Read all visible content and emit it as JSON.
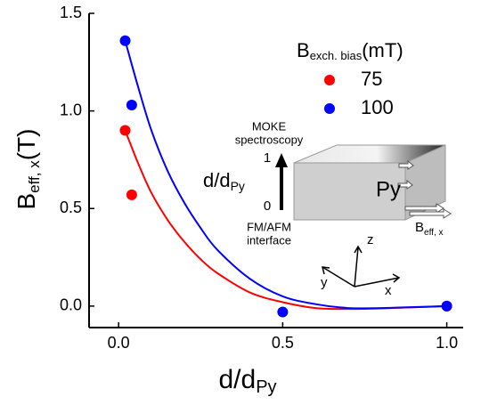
{
  "chart_data": {
    "type": "scatter",
    "x_label": {
      "main": "d/d",
      "sub": "Py"
    },
    "y_label": {
      "main": "B",
      "sub": "eff, x",
      "unit": "(T)"
    },
    "legend_title": {
      "main": "B",
      "sub": "exch. bias",
      "unit": "(mT)"
    },
    "xlim": [
      -0.09,
      1.05
    ],
    "ylim": [
      -0.11,
      1.5
    ],
    "xticks": [
      {
        "value": 0,
        "label": "0.0"
      },
      {
        "value": 0.5,
        "label": "0.5"
      },
      {
        "value": 1,
        "label": "1.0"
      }
    ],
    "yticks": [
      {
        "value": 0,
        "label": "0.0"
      },
      {
        "value": 0.5,
        "label": "0.5"
      },
      {
        "value": 1,
        "label": "1.0"
      },
      {
        "value": 1.5,
        "label": "1.5"
      }
    ],
    "series": [
      {
        "name": "75",
        "color": "#ff0000",
        "x": [
          0.02,
          0.04,
          1.0
        ],
        "values": [
          0.9,
          0.57,
          0.0
        ],
        "fit_x": [
          0.02,
          0.06,
          0.1,
          0.15,
          0.2,
          0.25,
          0.3,
          0.4,
          0.5,
          0.6,
          0.7,
          0.8,
          0.9,
          1.0
        ],
        "fit_values": [
          0.9,
          0.73,
          0.58,
          0.44,
          0.33,
          0.24,
          0.17,
          0.07,
          0.02,
          -0.01,
          -0.015,
          -0.012,
          -0.006,
          0.0
        ]
      },
      {
        "name": "100",
        "color": "#0000ff",
        "x": [
          0.02,
          0.04,
          0.5,
          1.0
        ],
        "values": [
          1.36,
          1.03,
          -0.03,
          0.0
        ],
        "fit_x": [
          0.02,
          0.06,
          0.1,
          0.15,
          0.2,
          0.25,
          0.3,
          0.4,
          0.5,
          0.6,
          0.7,
          0.8,
          0.9,
          1.0
        ],
        "fit_values": [
          1.36,
          1.12,
          0.9,
          0.69,
          0.53,
          0.4,
          0.29,
          0.14,
          0.05,
          0.01,
          -0.01,
          -0.01,
          -0.005,
          0.0
        ]
      }
    ]
  },
  "inset": {
    "moke": "MOKE",
    "spectroscopy": "spectroscopy",
    "top": "1",
    "bottom": "0",
    "ratio": {
      "main": "d/d",
      "sub": "Py"
    },
    "fm_afm": "FM/AFM",
    "interface": "interface",
    "layer": "Py",
    "field": {
      "main": "B",
      "sub": "eff, x"
    },
    "z": "z",
    "y": "y",
    "x": "x"
  }
}
